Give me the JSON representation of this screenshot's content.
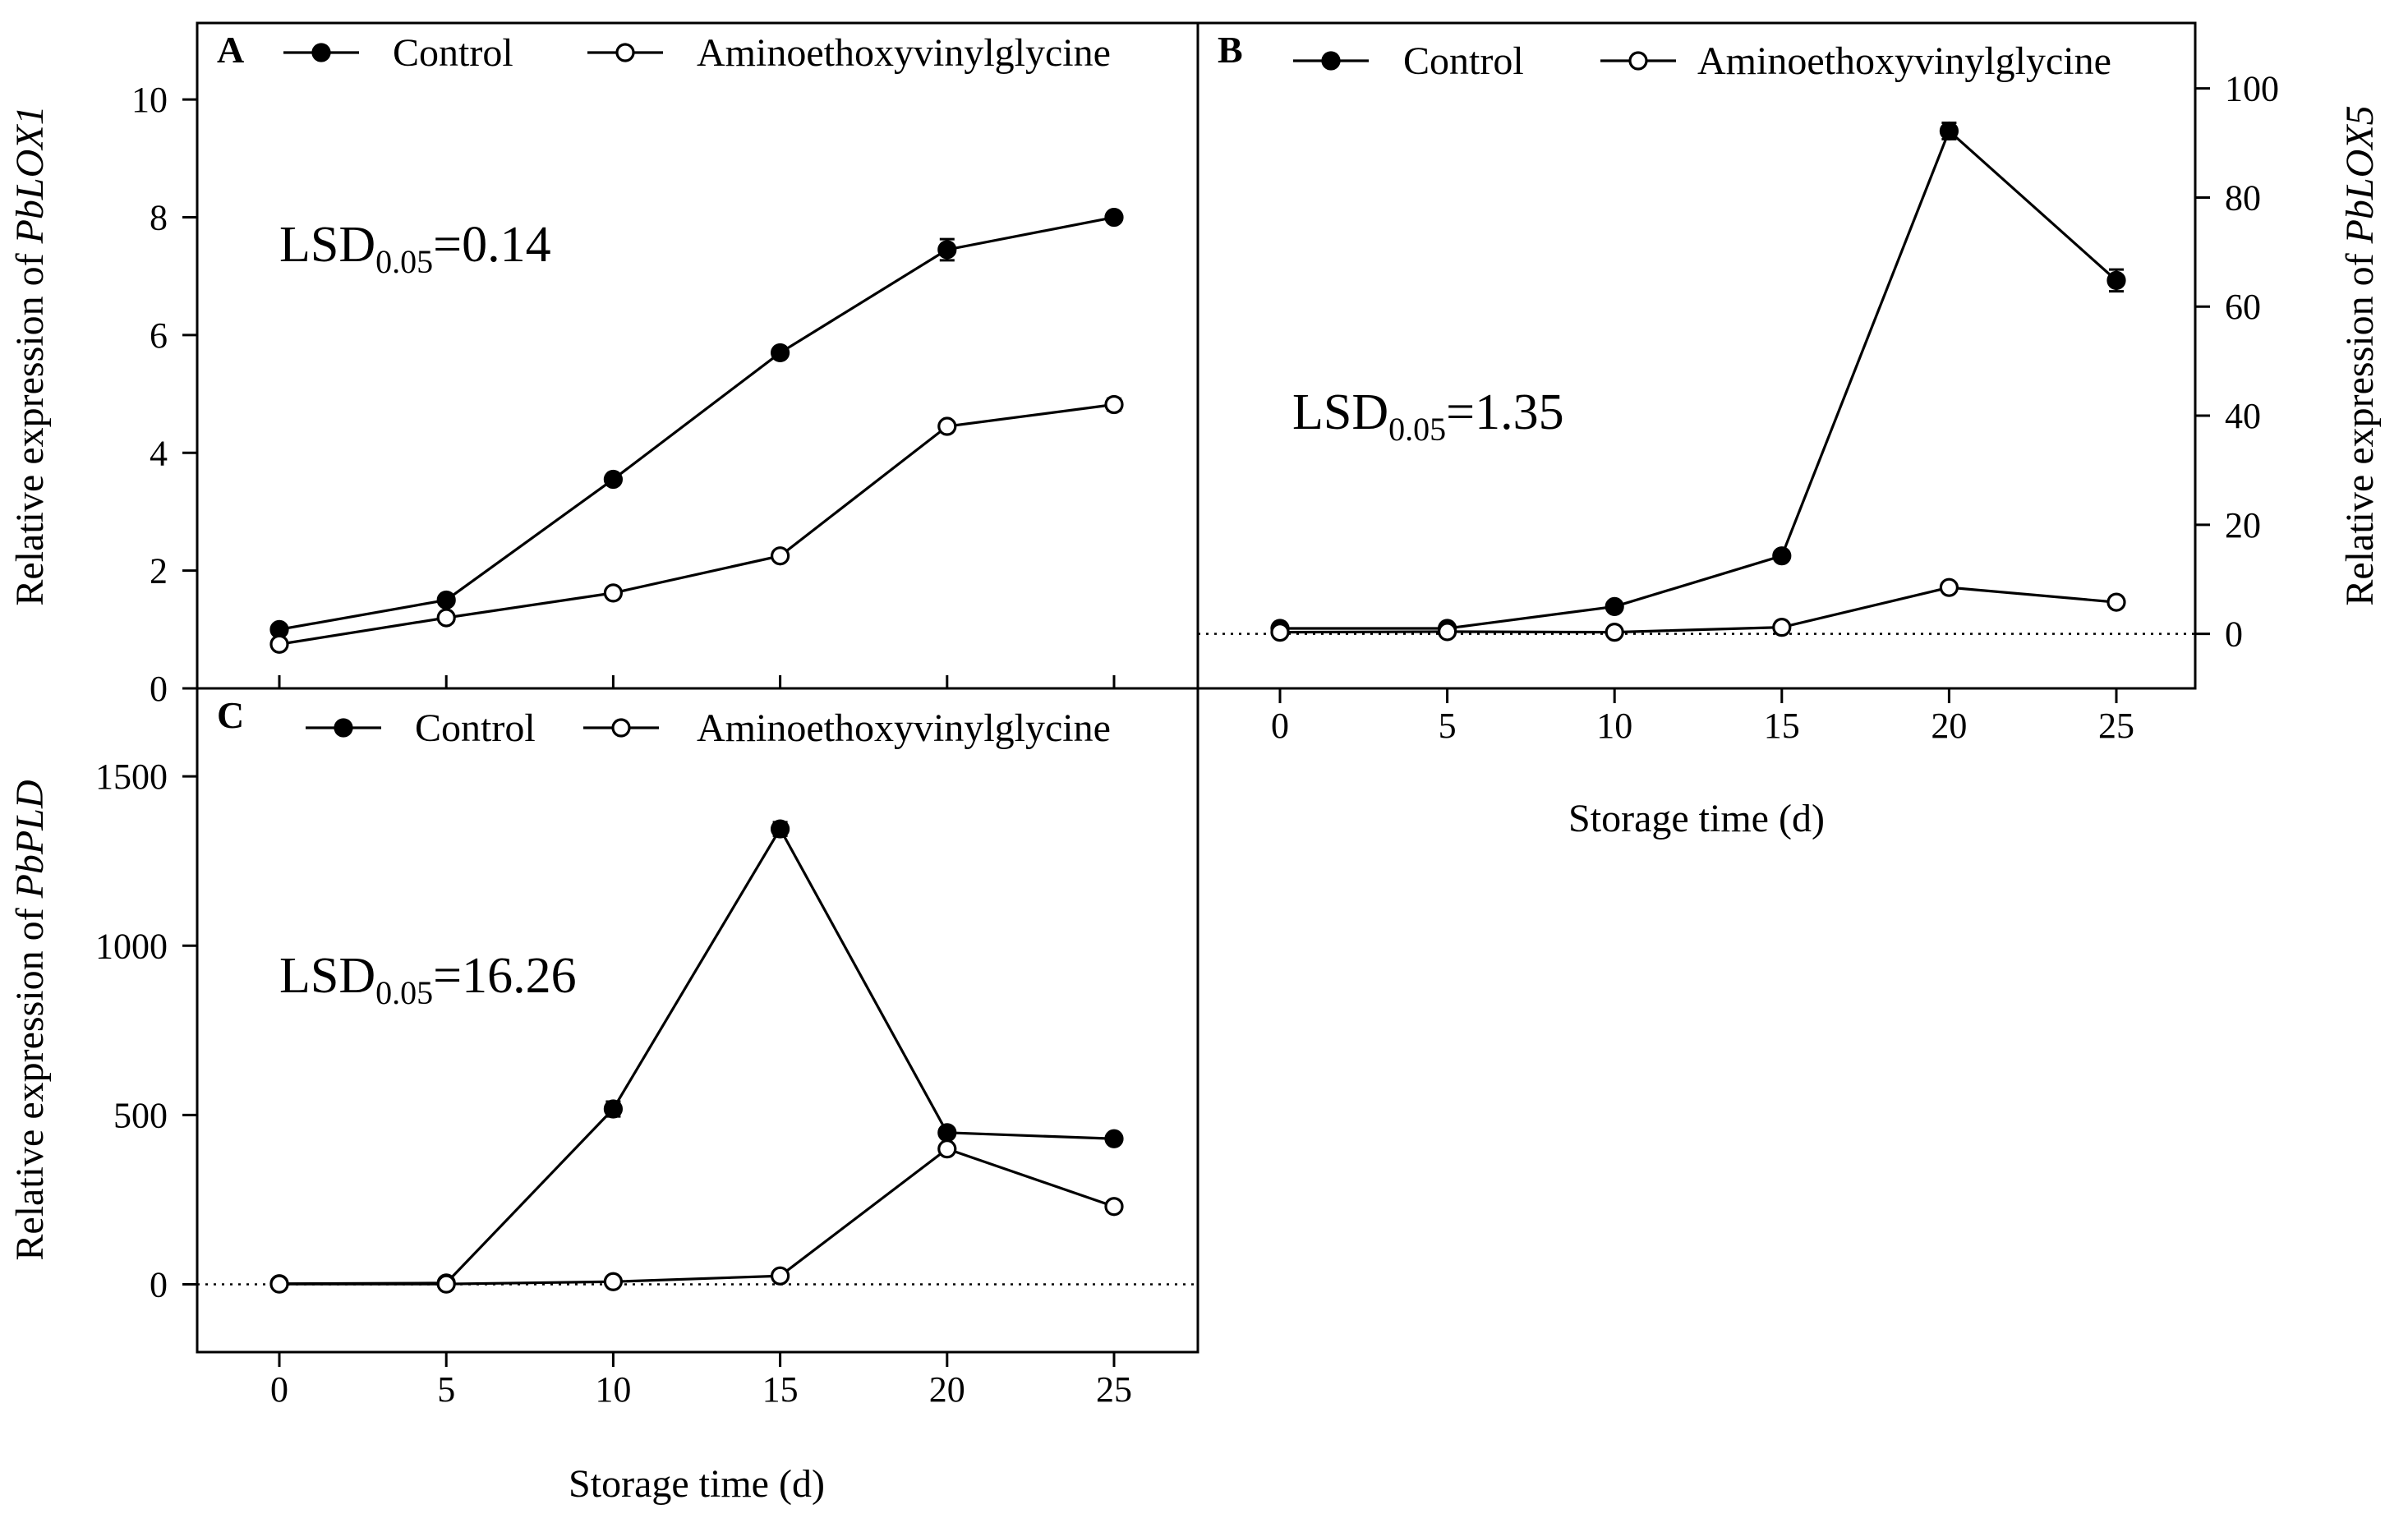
{
  "colors": {
    "line": "#000000",
    "background": "#ffffff",
    "open_marker_fill": "#ffffff"
  },
  "chart_data": [
    {
      "type": "line",
      "panel": "A",
      "title": "",
      "xlabel": "",
      "ylabel_prefix": "Relative expression of ",
      "gene": "PbLOX1",
      "x": [
        0,
        5,
        10,
        15,
        20,
        25
      ],
      "x_ticks": [
        "0",
        "5",
        "10",
        "15",
        "20",
        "25"
      ],
      "ylim": [
        0,
        11.3
      ],
      "y_ticks": [
        "0",
        "2",
        "4",
        "6",
        "8",
        "10"
      ],
      "y_tick_values": [
        0,
        2,
        4,
        6,
        8,
        10
      ],
      "axis_side": "left",
      "zero_reference_line": false,
      "lsd_prefix": "LSD",
      "lsd_sub": "0.05",
      "lsd_value": "=0.14",
      "series": [
        {
          "name": "Control",
          "marker": "filled",
          "values": [
            1.0,
            1.5,
            3.55,
            5.7,
            7.45,
            8.0
          ],
          "errors": [
            0.03,
            0.04,
            0.05,
            0.06,
            0.18,
            0.06
          ]
        },
        {
          "name": "Aminoethoxyvinylglycine",
          "marker": "open",
          "values": [
            0.75,
            1.2,
            1.62,
            2.25,
            4.45,
            4.82
          ],
          "errors": [
            0.03,
            0.04,
            0.04,
            0.05,
            0.06,
            0.1
          ]
        }
      ]
    },
    {
      "type": "line",
      "panel": "B",
      "title": "",
      "xlabel": "Storage time (d)",
      "ylabel_prefix": "Relative expression of ",
      "gene": "PbLOX5",
      "x": [
        0,
        5,
        10,
        15,
        20,
        25
      ],
      "x_ticks": [
        "0",
        "5",
        "10",
        "15",
        "20",
        "25"
      ],
      "ylim": [
        -10,
        112
      ],
      "y_ticks": [
        "0",
        "20",
        "40",
        "60",
        "80",
        "100"
      ],
      "y_tick_values": [
        0,
        20,
        40,
        60,
        80,
        100
      ],
      "axis_side": "right",
      "zero_reference_line": true,
      "lsd_prefix": "LSD",
      "lsd_sub": "0.05",
      "lsd_value": "=1.35",
      "series": [
        {
          "name": "Control",
          "marker": "filled",
          "values": [
            1.0,
            1.0,
            5.0,
            14.3,
            92.2,
            64.8
          ],
          "errors": [
            0.2,
            0.2,
            0.3,
            0.4,
            1.5,
            2.0
          ]
        },
        {
          "name": "Aminoethoxyvinylglycine",
          "marker": "open",
          "values": [
            0.3,
            0.4,
            0.3,
            1.2,
            8.5,
            5.8
          ],
          "errors": [
            0.1,
            0.1,
            0.1,
            0.2,
            0.4,
            0.3
          ]
        }
      ]
    },
    {
      "type": "line",
      "panel": "C",
      "title": "",
      "xlabel": "Storage time (d)",
      "ylabel_prefix": "Relative expression of ",
      "gene": "PbPLD",
      "x": [
        0,
        5,
        10,
        15,
        20,
        25
      ],
      "x_ticks": [
        "0",
        "5",
        "10",
        "15",
        "20",
        "25"
      ],
      "ylim": [
        -200,
        1760
      ],
      "y_ticks": [
        "0",
        "500",
        "1000",
        "1500"
      ],
      "y_tick_values": [
        0,
        500,
        1000,
        1500
      ],
      "axis_side": "left",
      "zero_reference_line": true,
      "lsd_prefix": "LSD",
      "lsd_sub": "0.05",
      "lsd_value": "=16.26",
      "series": [
        {
          "name": "Control",
          "marker": "filled",
          "values": [
            2,
            4,
            518,
            1345,
            448,
            430
          ],
          "errors": [
            1,
            1,
            22,
            20,
            6,
            5
          ]
        },
        {
          "name": "Aminoethoxyvinylglycine",
          "marker": "open",
          "values": [
            1,
            1,
            8,
            25,
            400,
            230
          ],
          "errors": [
            1,
            1,
            2,
            3,
            8,
            6
          ]
        }
      ]
    }
  ]
}
